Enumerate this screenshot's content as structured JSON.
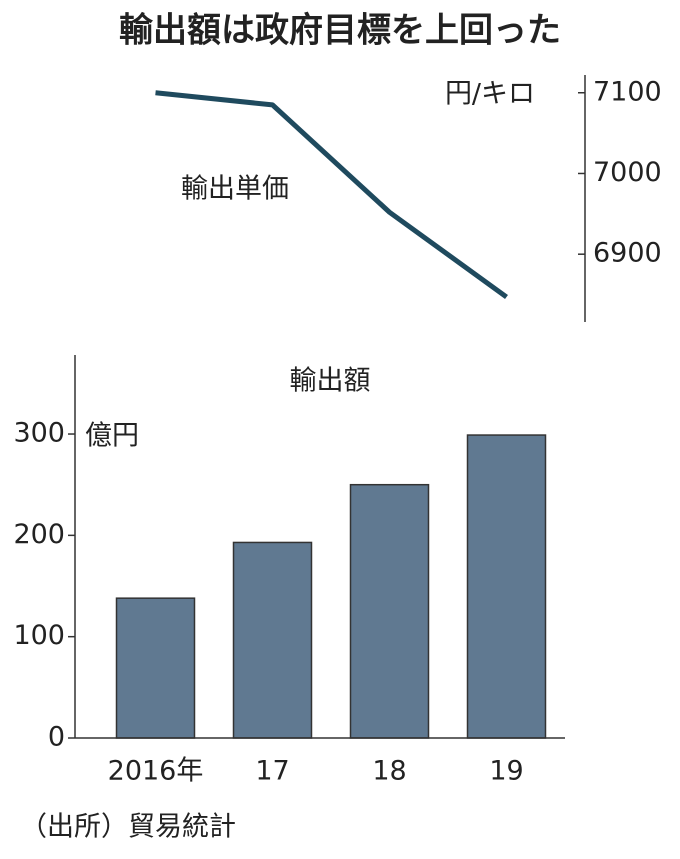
{
  "title": "輸出額は政府目標を上回った",
  "source": "（出所）貿易統計",
  "chart_data": [
    {
      "type": "line",
      "y_unit": "円/キロ",
      "yaxis_side": "right",
      "categories": [
        null,
        null,
        null,
        null
      ],
      "series": [
        {
          "name": "輸出単価",
          "color": "#1f4a5e",
          "values": [
            7100,
            7085,
            6952,
            6847
          ]
        }
      ],
      "ylim": [
        6816,
        7122
      ],
      "yticks": [
        6900,
        7000,
        7100
      ]
    },
    {
      "type": "bar",
      "y_unit": "億円",
      "categories": [
        "2016年",
        "17",
        "18",
        "19"
      ],
      "series": [
        {
          "name": "輸出額",
          "color": "#607991",
          "values": [
            138,
            193,
            250,
            299
          ]
        }
      ],
      "ylim": [
        0,
        378
      ],
      "yticks": [
        0,
        100,
        200,
        300
      ]
    }
  ]
}
